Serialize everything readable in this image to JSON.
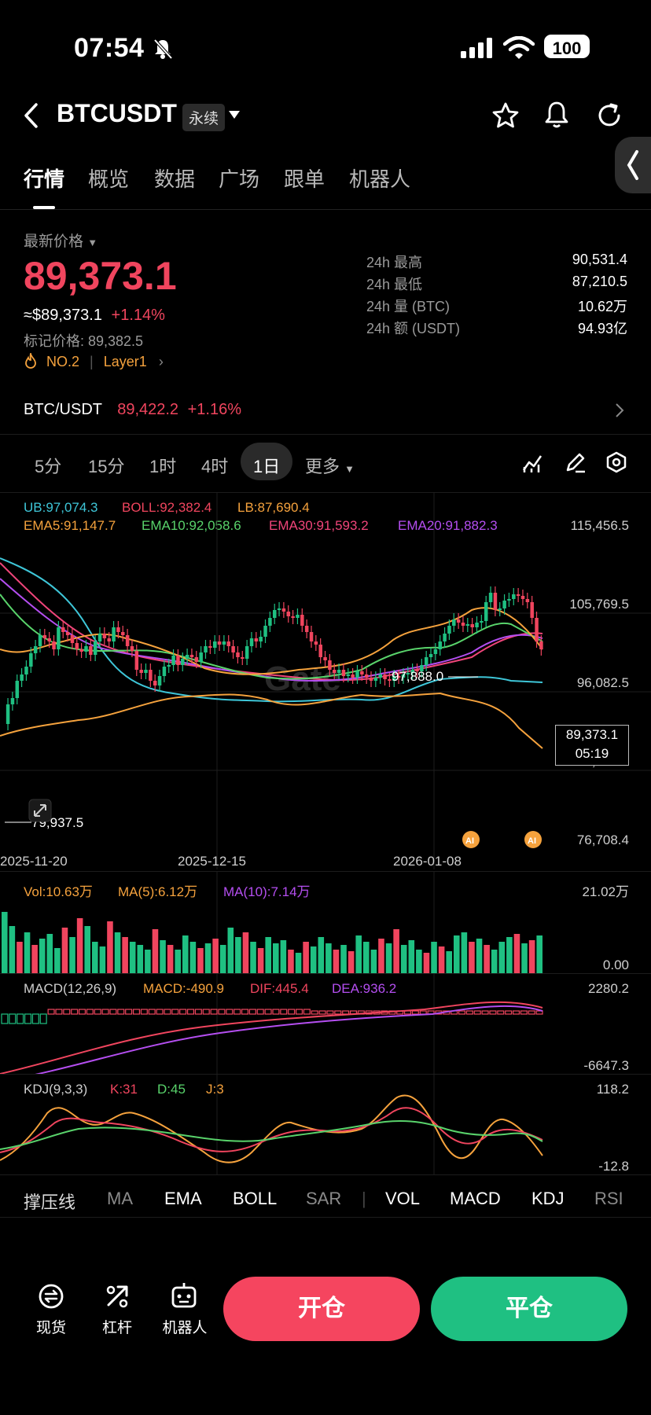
{
  "status_bar": {
    "time": "07:54",
    "battery": "100"
  },
  "header": {
    "symbol": "BTCUSDT",
    "badge": "永续"
  },
  "tabs": [
    "行情",
    "概览",
    "数据",
    "广场",
    "跟单",
    "机器人"
  ],
  "price": {
    "latest_label": "最新价格",
    "last": "89,373.1",
    "usd_approx": "≈$89,373.1",
    "change": "+1.14%",
    "mark_label": "标记价格: 89,382.5",
    "rank": "NO.2",
    "sector": "Layer1"
  },
  "stats": [
    {
      "label": "24h  最高",
      "value": "90,531.4"
    },
    {
      "label": "24h  最低",
      "value": "87,210.5"
    },
    {
      "label": "24h  量 (BTC)",
      "value": "10.62万"
    },
    {
      "label": "24h  额 (USDT)",
      "value": "94.93亿"
    }
  ],
  "spot": {
    "pair": "BTC/USDT",
    "price": "89,422.2",
    "change": "+1.16%"
  },
  "timeframes": [
    "5分",
    "15分",
    "1时",
    "4时",
    "1日",
    "更多"
  ],
  "active_timeframe": "1日",
  "main_legend": {
    "ub": "UB:97,074.3",
    "boll": "BOLL:92,382.4",
    "lb": "LB:87,690.4",
    "ema5": "EMA5:91,147.7",
    "ema10": "EMA10:92,058.6",
    "ema30": "EMA30:91,593.2",
    "ema20": "EMA20:91,882.3"
  },
  "main_axis": [
    "115,456.5",
    "105,769.5",
    "96,082.5",
    "86,395.5",
    "76,708.4"
  ],
  "chart_labels": {
    "high": "97,888.0",
    "low": "79,937.5",
    "last": "89,373.1",
    "countdown": "05:19"
  },
  "date_axis": [
    "2025-11-20",
    "2025-12-15",
    "2026-01-08"
  ],
  "volume": {
    "vol": "Vol:10.63万",
    "ma5": "MA(5):6.12万",
    "ma10": "MA(10):7.14万",
    "max": "21.02万",
    "min": "0.00"
  },
  "macd": {
    "title": "MACD(12,26,9)",
    "macd": "MACD:-490.9",
    "dif": "DIF:445.4",
    "dea": "DEA:936.2",
    "max": "2280.2",
    "min": "-6647.3"
  },
  "kdj": {
    "title": "KDJ(9,3,3)",
    "k": "K:31",
    "d": "D:45",
    "j": "J:3",
    "max": "118.2",
    "min": "-12.8"
  },
  "indicators": [
    "撑压线",
    "MA",
    "EMA",
    "BOLL",
    "SAR",
    "VOL",
    "MACD",
    "KDJ",
    "RSI"
  ],
  "bottom_nav": [
    "现货",
    "杠杆",
    "机器人"
  ],
  "actions": {
    "open": "开仓",
    "close": "平仓"
  },
  "colors": {
    "up": "#1fc082",
    "down": "#f0455e",
    "ub": "#3ec6d8",
    "boll": "#f0455e",
    "lb": "#f5a23d",
    "ema5": "#f5a23d",
    "ema10": "#59d36b",
    "ema30": "#f0457a",
    "ema20": "#b44ef0"
  },
  "chart_data": {
    "type": "candlestick",
    "x": [
      "2025-11-20",
      "2025-12-15",
      "2026-01-08"
    ],
    "ylim": [
      76708.4,
      115456.5
    ],
    "high": 97888.0,
    "low": 79937.5,
    "last": 89373.1
  }
}
